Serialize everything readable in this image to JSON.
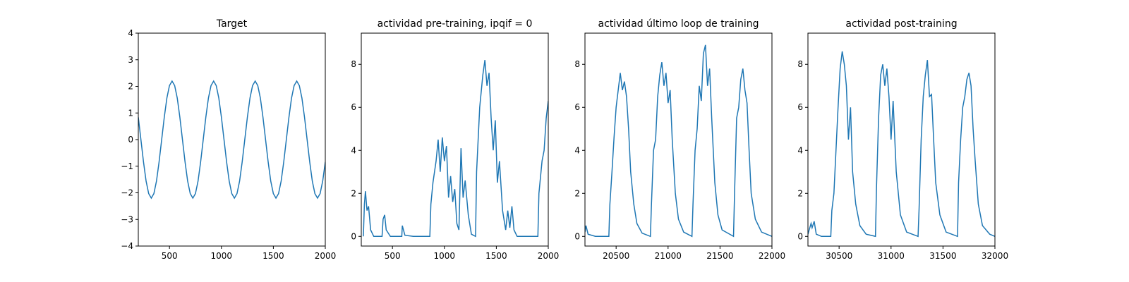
{
  "chart_data": [
    {
      "type": "line",
      "title": "Target",
      "color": "#1f77b4",
      "x": [
        200,
        225,
        250,
        275,
        300,
        325,
        350,
        375,
        400,
        425,
        450,
        475,
        500,
        525,
        550,
        575,
        600,
        625,
        650,
        675,
        700,
        725,
        750,
        775,
        800,
        825,
        850,
        875,
        900,
        925,
        950,
        975,
        1000,
        1025,
        1050,
        1075,
        1100,
        1125,
        1150,
        1175,
        1200,
        1225,
        1250,
        1275,
        1300,
        1325,
        1350,
        1375,
        1400,
        1425,
        1450,
        1475,
        1500,
        1525,
        1550,
        1575,
        1600,
        1625,
        1650,
        1675,
        1700,
        1725,
        1750,
        1775,
        1800,
        1825,
        1850,
        1875,
        1900,
        1925,
        1950,
        1975,
        2000
      ],
      "values": [
        0.84,
        0,
        -0.84,
        -1.56,
        -2.03,
        -2.2,
        -2.03,
        -1.56,
        -0.84,
        0,
        0.84,
        1.56,
        2.03,
        2.2,
        2.03,
        1.56,
        0.84,
        0,
        -0.84,
        -1.56,
        -2.03,
        -2.2,
        -2.03,
        -1.56,
        -0.84,
        0,
        0.84,
        1.56,
        2.03,
        2.2,
        2.03,
        1.56,
        0.84,
        0,
        -0.84,
        -1.56,
        -2.03,
        -2.2,
        -2.03,
        -1.56,
        -0.84,
        0,
        0.84,
        1.56,
        2.03,
        2.2,
        2.03,
        1.56,
        0.84,
        0,
        -0.84,
        -1.56,
        -2.03,
        -2.2,
        -2.03,
        -1.56,
        -0.84,
        0,
        0.84,
        1.56,
        2.03,
        2.2,
        2.03,
        1.56,
        0.84,
        0,
        -0.84,
        -1.56,
        -2.03,
        -2.2,
        -2.03,
        -1.56,
        -0.84
      ],
      "xlim": [
        200,
        2000
      ],
      "xticks": [
        500,
        1000,
        1500,
        2000
      ],
      "ylim": [
        -4,
        4
      ],
      "yticks": [
        {
          "value": -4,
          "label": "−4"
        },
        {
          "value": -3,
          "label": "−3"
        },
        {
          "value": -2,
          "label": "−2"
        },
        {
          "value": -1,
          "label": "−1"
        },
        0,
        1,
        2,
        3,
        4
      ]
    },
    {
      "type": "line",
      "title": "actividad pre-training, ipqif = 0",
      "color": "#1f77b4",
      "x": [
        220,
        230,
        240,
        255,
        270,
        290,
        320,
        400,
        410,
        425,
        440,
        480,
        590,
        595,
        620,
        700,
        860,
        870,
        890,
        920,
        940,
        960,
        980,
        1000,
        1020,
        1040,
        1060,
        1080,
        1100,
        1120,
        1140,
        1160,
        1180,
        1200,
        1230,
        1260,
        1300,
        1310,
        1340,
        1370,
        1390,
        1410,
        1430,
        1450,
        1470,
        1490,
        1510,
        1530,
        1560,
        1590,
        1610,
        1630,
        1650,
        1670,
        1700,
        1900,
        1910,
        1940,
        1960,
        1980,
        2000
      ],
      "values": [
        0,
        1.5,
        2.1,
        1.2,
        1.4,
        0.3,
        0,
        0,
        0.8,
        1.0,
        0.3,
        0,
        0,
        0.5,
        0.05,
        0,
        0,
        1.5,
        2.5,
        3.5,
        4.5,
        3.0,
        4.6,
        3.5,
        4.2,
        1.8,
        2.8,
        1.6,
        2.2,
        0.6,
        0.3,
        4.1,
        1.8,
        2.6,
        1.0,
        0.1,
        0,
        3.0,
        6.0,
        7.5,
        8.2,
        7.0,
        7.6,
        5.5,
        4.0,
        5.4,
        2.5,
        3.5,
        1.2,
        0.3,
        1.2,
        0.4,
        1.4,
        0.3,
        0,
        0,
        2.0,
        3.5,
        4.0,
        5.5,
        6.3
      ],
      "xlim": [
        200,
        2000
      ],
      "xticks": [
        500,
        1000,
        1500,
        2000
      ],
      "ylim": [
        -0.45,
        9.45
      ],
      "yticks": [
        0,
        2,
        4,
        6,
        8
      ]
    },
    {
      "type": "line",
      "title": "actividad último loop de training",
      "color": "#1f77b4",
      "x": [
        20200,
        20210,
        20230,
        20300,
        20430,
        20440,
        20460,
        20480,
        20500,
        20520,
        20540,
        20560,
        20580,
        20600,
        20620,
        20640,
        20670,
        20700,
        20750,
        20830,
        20840,
        20860,
        20880,
        20900,
        20920,
        20940,
        20960,
        20980,
        21000,
        21020,
        21040,
        21070,
        21100,
        21150,
        21230,
        21240,
        21260,
        21280,
        21300,
        21320,
        21340,
        21360,
        21380,
        21400,
        21420,
        21450,
        21480,
        21520,
        21630,
        21640,
        21660,
        21680,
        21700,
        21720,
        21740,
        21760,
        21780,
        21800,
        21840,
        21900,
        22000
      ],
      "values": [
        0.2,
        0.5,
        0.1,
        0,
        0,
        1.5,
        3.0,
        4.6,
        6.0,
        6.8,
        7.6,
        6.8,
        7.2,
        6.5,
        5.0,
        3.0,
        1.5,
        0.6,
        0.15,
        0,
        1.5,
        4.0,
        4.5,
        6.5,
        7.5,
        8.1,
        7.0,
        7.6,
        6.2,
        6.8,
        4.5,
        2.0,
        0.8,
        0.2,
        0,
        1.5,
        4.0,
        5.0,
        7.0,
        6.3,
        8.5,
        8.9,
        7.0,
        7.8,
        5.5,
        2.5,
        1.0,
        0.3,
        0,
        2.0,
        5.5,
        6.0,
        7.3,
        7.8,
        6.8,
        6.2,
        4.0,
        2.0,
        0.8,
        0.2,
        0
      ],
      "xlim": [
        20200,
        22000
      ],
      "xticks": [
        20500,
        21000,
        21500,
        22000
      ],
      "ylim": [
        -0.45,
        9.45
      ],
      "yticks": [
        0,
        2,
        4,
        6,
        8
      ]
    },
    {
      "type": "line",
      "title": "actividad post-training",
      "color": "#1f77b4",
      "x": [
        30200,
        30230,
        30240,
        30260,
        30280,
        30330,
        30420,
        30430,
        30450,
        30470,
        30490,
        30510,
        30530,
        30550,
        30570,
        30590,
        30610,
        30630,
        30660,
        30700,
        30760,
        30850,
        30860,
        30880,
        30900,
        30920,
        30940,
        30960,
        30980,
        31000,
        31020,
        31050,
        31090,
        31150,
        31260,
        31270,
        31290,
        31310,
        31330,
        31350,
        31370,
        31390,
        31410,
        31430,
        31470,
        31530,
        31640,
        31650,
        31670,
        31690,
        31710,
        31730,
        31750,
        31770,
        31790,
        31810,
        31840,
        31880,
        31950,
        32000
      ],
      "values": [
        0.1,
        0.6,
        0.4,
        0.7,
        0.1,
        0,
        0,
        1.2,
        2.0,
        4.0,
        6.0,
        7.8,
        8.6,
        8.0,
        7.0,
        4.5,
        6.0,
        3.0,
        1.5,
        0.5,
        0.1,
        0,
        2.3,
        5.5,
        7.5,
        8.0,
        7.0,
        7.8,
        6.5,
        4.5,
        6.3,
        3.0,
        1.0,
        0.2,
        0,
        1.3,
        4.5,
        6.5,
        7.5,
        8.2,
        6.5,
        6.6,
        4.5,
        2.5,
        1.0,
        0.2,
        0,
        2.5,
        4.5,
        6.0,
        6.5,
        7.3,
        7.6,
        7.0,
        5.0,
        3.5,
        1.5,
        0.5,
        0.1,
        0
      ],
      "xlim": [
        30200,
        32000
      ],
      "xticks": [
        30500,
        31000,
        31500,
        32000
      ],
      "ylim": [
        -0.45,
        9.45
      ],
      "yticks": [
        0,
        2,
        4,
        6,
        8
      ]
    }
  ]
}
